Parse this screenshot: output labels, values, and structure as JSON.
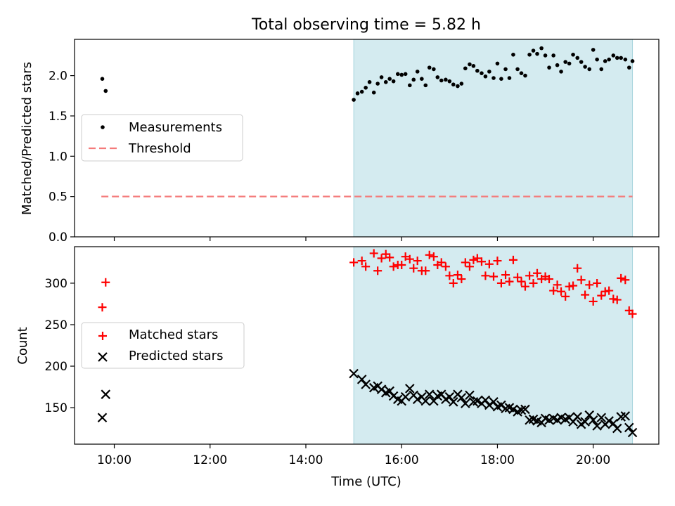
{
  "title": "Total observing time = 5.82 h",
  "colors": {
    "shade": "#d4ebf0",
    "measurements": "#000000",
    "threshold": "#f47b7b",
    "matched": "#ff0000",
    "predicted": "#000000"
  },
  "chart_data": [
    {
      "type": "scatter",
      "ylabel": "Matched/Predicted stars",
      "ylim": [
        0,
        2.45
      ],
      "xlim": [
        9.17,
        21.37
      ],
      "yticks": [
        0,
        0.5,
        1,
        1.5,
        2
      ],
      "ytick_labels": [
        "0.0",
        "0.5",
        "1.0",
        "1.5",
        "2.0"
      ],
      "shaded_x": [
        15.0,
        20.82
      ],
      "legend_position": "center-left",
      "legend": [
        "Measurements",
        "Threshold"
      ],
      "threshold": {
        "name": "Threshold",
        "y": 0.5,
        "x": [
          9.73,
          20.82
        ]
      },
      "series": [
        {
          "name": "Measurements",
          "x": [
            9.75,
            9.82,
            15.0,
            15.08,
            15.17,
            15.25,
            15.33,
            15.42,
            15.5,
            15.58,
            15.67,
            15.75,
            15.83,
            15.92,
            16.0,
            16.08,
            16.17,
            16.25,
            16.33,
            16.42,
            16.5,
            16.58,
            16.67,
            16.75,
            16.83,
            16.92,
            17.0,
            17.08,
            17.17,
            17.25,
            17.33,
            17.42,
            17.5,
            17.58,
            17.67,
            17.75,
            17.83,
            17.92,
            18.0,
            18.08,
            18.17,
            18.25,
            18.33,
            18.42,
            18.5,
            18.58,
            18.67,
            18.75,
            18.83,
            18.92,
            19.0,
            19.08,
            19.17,
            19.25,
            19.33,
            19.42,
            19.5,
            19.58,
            19.67,
            19.75,
            19.83,
            19.92,
            20.0,
            20.08,
            20.17,
            20.25,
            20.33,
            20.42,
            20.5,
            20.58,
            20.67,
            20.75,
            20.82
          ],
          "y": [
            1.96,
            1.81,
            1.7,
            1.78,
            1.8,
            1.85,
            1.92,
            1.79,
            1.9,
            1.98,
            1.92,
            1.96,
            1.93,
            2.02,
            2.01,
            2.02,
            1.88,
            1.95,
            2.05,
            1.96,
            1.88,
            2.1,
            2.08,
            1.98,
            1.94,
            1.95,
            1.93,
            1.89,
            1.87,
            1.9,
            2.09,
            2.14,
            2.12,
            2.06,
            2.03,
            1.99,
            2.05,
            1.97,
            2.15,
            1.96,
            2.08,
            1.97,
            2.26,
            2.08,
            2.03,
            2.0,
            2.26,
            2.31,
            2.27,
            2.34,
            2.25,
            2.1,
            2.25,
            2.13,
            2.05,
            2.17,
            2.15,
            2.26,
            2.22,
            2.17,
            2.11,
            2.08,
            2.32,
            2.2,
            2.08,
            2.18,
            2.2,
            2.25,
            2.22,
            2.22,
            2.2,
            2.1,
            2.18
          ]
        }
      ]
    },
    {
      "type": "scatter",
      "xlabel": "Time (UTC)",
      "ylabel": "Count",
      "ylim": [
        106,
        344
      ],
      "xlim": [
        9.17,
        21.37
      ],
      "yticks": [
        150,
        200,
        250,
        300
      ],
      "ytick_labels": [
        "150",
        "200",
        "250",
        "300"
      ],
      "xticks": [
        10,
        12,
        14,
        16,
        18,
        20
      ],
      "xtick_labels": [
        "10:00",
        "12:00",
        "14:00",
        "16:00",
        "18:00",
        "20:00"
      ],
      "shaded_x": [
        15.0,
        20.82
      ],
      "legend_position": "center-left",
      "legend": [
        "Matched stars",
        "Predicted stars"
      ],
      "series": [
        {
          "name": "Matched stars",
          "marker": "+",
          "x": [
            9.75,
            9.82,
            15.0,
            15.17,
            15.25,
            15.42,
            15.5,
            15.58,
            15.67,
            15.75,
            15.83,
            15.92,
            16.0,
            16.08,
            16.17,
            16.25,
            16.33,
            16.42,
            16.5,
            16.58,
            16.67,
            16.75,
            16.83,
            16.92,
            17.0,
            17.08,
            17.17,
            17.25,
            17.33,
            17.42,
            17.5,
            17.58,
            17.67,
            17.75,
            17.83,
            17.92,
            18.0,
            18.08,
            18.17,
            18.25,
            18.33,
            18.42,
            18.5,
            18.58,
            18.67,
            18.75,
            18.83,
            18.92,
            19.0,
            19.08,
            19.17,
            19.25,
            19.33,
            19.42,
            19.5,
            19.58,
            19.67,
            19.75,
            19.83,
            19.92,
            20.0,
            20.08,
            20.17,
            20.25,
            20.33,
            20.42,
            20.5,
            20.58,
            20.67,
            20.75,
            20.82
          ],
          "y": [
            271,
            301,
            325,
            327,
            320,
            336,
            315,
            330,
            335,
            331,
            320,
            322,
            322,
            332,
            329,
            318,
            327,
            315,
            315,
            334,
            332,
            322,
            325,
            320,
            309,
            300,
            310,
            305,
            325,
            320,
            328,
            330,
            326,
            309,
            323,
            308,
            327,
            300,
            310,
            302,
            328,
            307,
            302,
            296,
            309,
            300,
            312,
            305,
            308,
            305,
            291,
            298,
            290,
            284,
            296,
            297,
            318,
            304,
            286,
            298,
            278,
            300,
            285,
            290,
            291,
            281,
            280,
            306,
            304,
            267,
            263
          ]
        },
        {
          "name": "Predicted stars",
          "marker": "x",
          "x": [
            9.75,
            9.82,
            15.0,
            15.17,
            15.25,
            15.42,
            15.5,
            15.58,
            15.67,
            15.75,
            15.83,
            15.92,
            16.0,
            16.08,
            16.17,
            16.25,
            16.33,
            16.42,
            16.5,
            16.58,
            16.67,
            16.75,
            16.83,
            16.92,
            17.0,
            17.08,
            17.17,
            17.25,
            17.33,
            17.42,
            17.5,
            17.58,
            17.67,
            17.75,
            17.83,
            17.92,
            18.0,
            18.08,
            18.17,
            18.25,
            18.33,
            18.42,
            18.5,
            18.58,
            18.67,
            18.75,
            18.83,
            18.92,
            19.0,
            19.08,
            19.17,
            19.25,
            19.33,
            19.42,
            19.5,
            19.58,
            19.67,
            19.75,
            19.83,
            19.92,
            20.0,
            20.08,
            20.17,
            20.25,
            20.33,
            20.42,
            20.5,
            20.58,
            20.67,
            20.75,
            20.82
          ],
          "y": [
            138,
            166,
            191,
            184,
            178,
            174,
            176,
            172,
            168,
            170,
            164,
            160,
            158,
            163,
            173,
            165,
            160,
            163,
            158,
            166,
            158,
            164,
            166,
            160,
            163,
            157,
            166,
            162,
            155,
            165,
            157,
            158,
            155,
            159,
            153,
            157,
            151,
            153,
            149,
            150,
            148,
            145,
            147,
            148,
            135,
            136,
            134,
            132,
            137,
            135,
            137,
            135,
            138,
            136,
            138,
            133,
            139,
            130,
            133,
            141,
            135,
            128,
            138,
            130,
            134,
            131,
            125,
            139,
            140,
            126,
            120
          ]
        }
      ]
    }
  ]
}
